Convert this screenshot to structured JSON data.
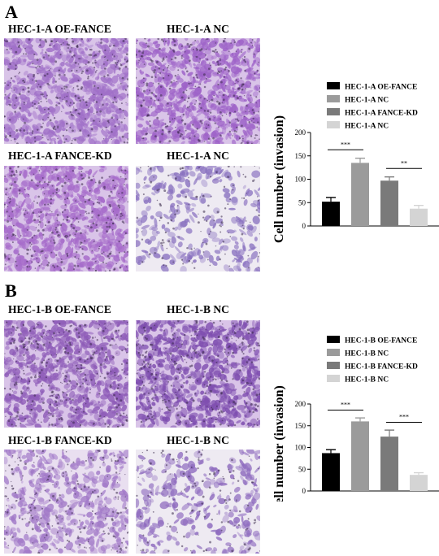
{
  "panels": [
    {
      "letter": "A",
      "images": [
        {
          "label": "HEC-1-A OE-FANCE",
          "density": "high",
          "tint": "#a070c8"
        },
        {
          "label": "HEC-1-A NC",
          "density": "high",
          "tint": "#9e63c8"
        },
        {
          "label": "HEC-1-A FANCE-KD",
          "density": "high",
          "tint": "#a66bca"
        },
        {
          "label": "HEC-1-A NC",
          "density": "low",
          "tint": "#8a72c0"
        }
      ]
    },
    {
      "letter": "B",
      "images": [
        {
          "label": "HEC-1-B OE-FANCE",
          "density": "high",
          "tint": "#8e5cb8"
        },
        {
          "label": "HEC-1-B NC",
          "density": "high",
          "tint": "#7f4fb0"
        },
        {
          "label": "HEC-1-B FANCE-KD",
          "density": "mid",
          "tint": "#a27ac8"
        },
        {
          "label": "HEC-1-B NC",
          "density": "low",
          "tint": "#8f6cbf"
        }
      ]
    }
  ],
  "chart_data": [
    {
      "type": "bar",
      "categories": [
        "HEC-1-A OE-FANCE",
        "HEC-1-A NC",
        "HEC-1-A FANCE-KD",
        "HEC-1-A NC"
      ],
      "values": [
        52,
        135,
        97,
        37
      ],
      "errors": [
        9,
        10,
        8,
        7
      ],
      "colors": [
        "#000000",
        "#9b9b9b",
        "#7a7a7a",
        "#d4d4d4"
      ],
      "ylabel": "Cell number (invasion)",
      "ylim": [
        0,
        200
      ],
      "yticks": [
        0,
        50,
        100,
        150,
        200
      ],
      "legend": "top",
      "significance": [
        {
          "from": 0,
          "to": 1,
          "label": "***"
        },
        {
          "from": 2,
          "to": 3,
          "label": "**"
        }
      ]
    },
    {
      "type": "bar",
      "categories": [
        "HEC-1-B OE-FANCE",
        "HEC-1-B NC",
        "HEC-1-B FANCE-KD",
        "HEC-1-B NC"
      ],
      "values": [
        87,
        160,
        125,
        37
      ],
      "errors": [
        8,
        8,
        15,
        5
      ],
      "colors": [
        "#000000",
        "#9b9b9b",
        "#7a7a7a",
        "#d4d4d4"
      ],
      "ylabel": "cell number (invasion)",
      "ylim": [
        0,
        200
      ],
      "yticks": [
        0,
        50,
        100,
        150,
        200
      ],
      "legend": "top",
      "significance": [
        {
          "from": 0,
          "to": 1,
          "label": "***"
        },
        {
          "from": 2,
          "to": 3,
          "label": "***"
        }
      ]
    }
  ]
}
